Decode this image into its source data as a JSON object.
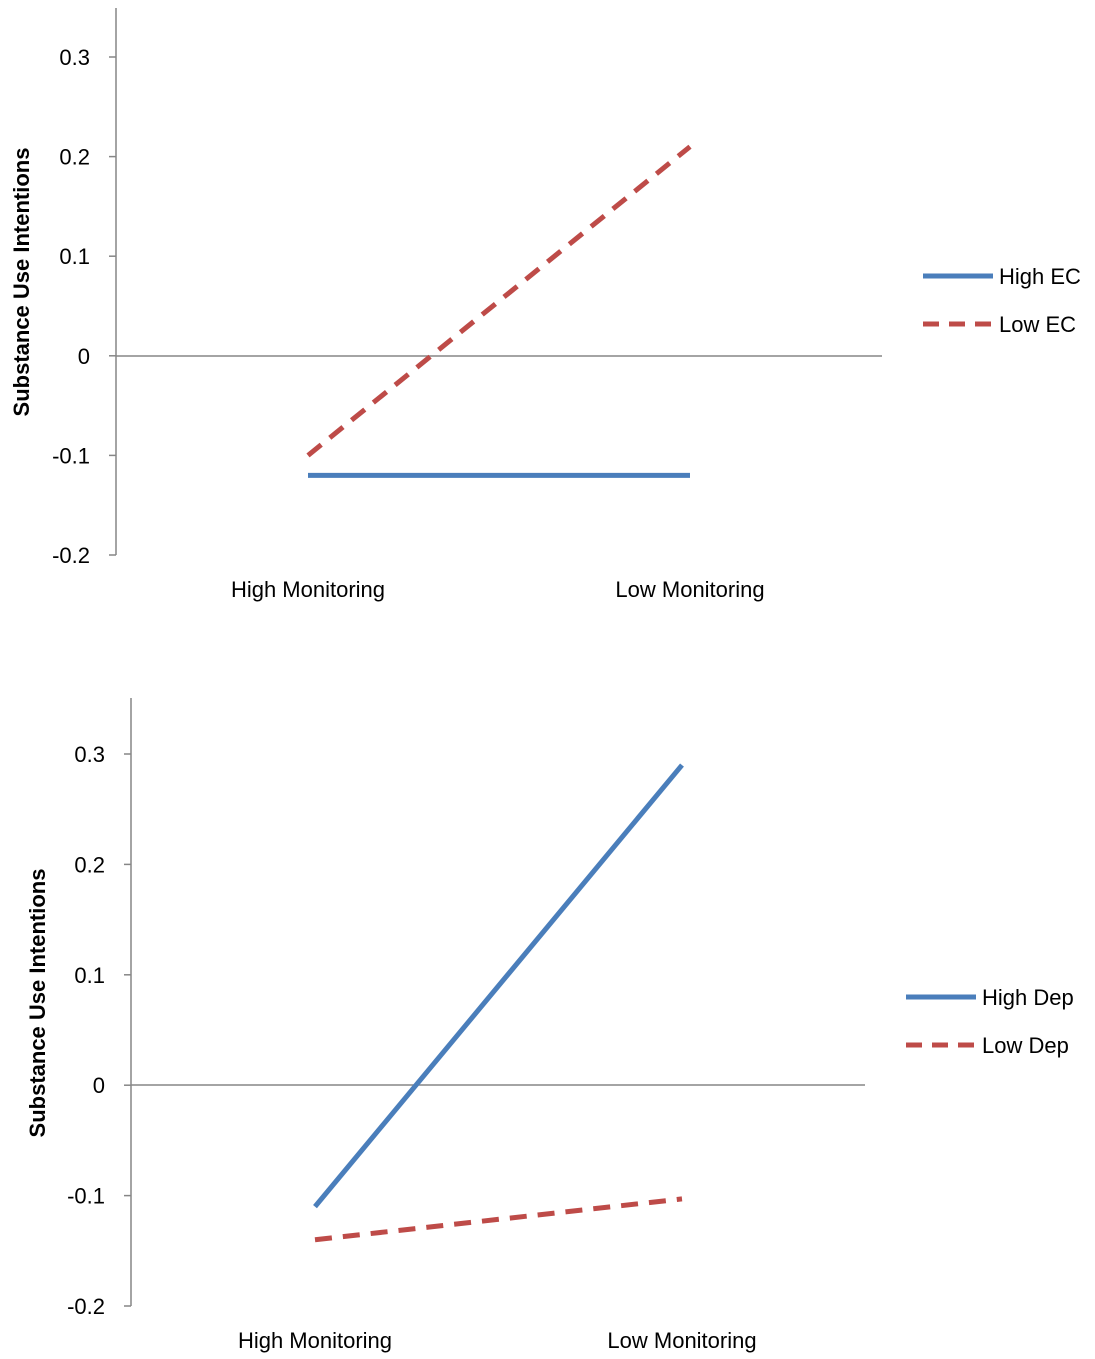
{
  "chart_data": [
    {
      "type": "line",
      "title": "",
      "xlabel": "",
      "ylabel": "Substance Use Intentions",
      "categories": [
        "High Monitoring",
        "Low Monitoring"
      ],
      "ylim": [
        -0.2,
        0.3
      ],
      "yticks": [
        "0.3",
        "0.2",
        "0.1",
        "0",
        "-0.1",
        "-0.2"
      ],
      "legend_position": "right",
      "series": [
        {
          "name": "High EC",
          "values": [
            -0.12,
            -0.12
          ],
          "color": "#4a7ebb",
          "style": "solid"
        },
        {
          "name": "Low EC",
          "values": [
            -0.1,
            0.21
          ],
          "color": "#be4b48",
          "style": "dashed"
        }
      ]
    },
    {
      "type": "line",
      "title": "",
      "xlabel": "",
      "ylabel": "Substance Use Intentions",
      "categories": [
        "High Monitoring",
        "Low Monitoring"
      ],
      "ylim": [
        -0.2,
        0.3
      ],
      "yticks": [
        "0.3",
        "0.2",
        "0.1",
        "0",
        "-0.1",
        "-0.2"
      ],
      "legend_position": "right",
      "series": [
        {
          "name": "High Dep",
          "values": [
            -0.11,
            0.29
          ],
          "color": "#4a7ebb",
          "style": "solid"
        },
        {
          "name": "Low Dep",
          "values": [
            -0.14,
            -0.103
          ],
          "color": "#be4b48",
          "style": "dashed"
        }
      ]
    }
  ]
}
